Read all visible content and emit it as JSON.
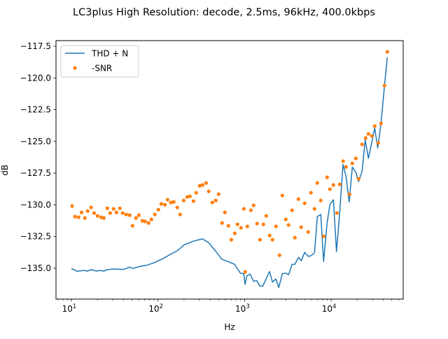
{
  "chart_data": {
    "type": "line",
    "title": "LC3plus High Resolution: decode, 2.5ms, 96kHz, 400.0kbps",
    "xlabel": "Hz",
    "ylabel": "dB",
    "xscale": "log",
    "xlim": [
      6.64,
      67900
    ],
    "ylim": [
      -137.43,
      -117.06
    ],
    "xticks": [
      {
        "value": 10,
        "base": "10",
        "exp": "1"
      },
      {
        "value": 100,
        "base": "10",
        "exp": "2"
      },
      {
        "value": 1000,
        "base": "10",
        "exp": "3"
      },
      {
        "value": 10000,
        "base": "10",
        "exp": "4"
      }
    ],
    "yticks": [
      {
        "value": -117.5,
        "label": "−117.5"
      },
      {
        "value": -120,
        "label": "−120.0"
      },
      {
        "value": -122.5,
        "label": "−122.5"
      },
      {
        "value": -125,
        "label": "−125.0"
      },
      {
        "value": -127.5,
        "label": "−127.5"
      },
      {
        "value": -130,
        "label": "−130.0"
      },
      {
        "value": -132.5,
        "label": "−132.5"
      },
      {
        "value": -135,
        "label": "−135.0"
      }
    ],
    "grid": false,
    "legend_position": "top-left",
    "series": [
      {
        "name": "THD + N",
        "style": "line",
        "color": "#1f77b4",
        "x": [
          10,
          11.6,
          14,
          15.3,
          16.8,
          19.6,
          21.6,
          23.7,
          26,
          30.4,
          40.2,
          46.9,
          51.4,
          61.9,
          74.6,
          89.9,
          108,
          131,
          167,
          201,
          258,
          327,
          386,
          481,
          544,
          656,
          766,
          893,
          980,
          1012,
          1064,
          1159,
          1271,
          1380,
          1503,
          1619,
          1940,
          2102,
          2296,
          2485,
          2728,
          2992,
          3223,
          3540,
          3811,
          4188,
          4508,
          4945,
          5428,
          5846,
          6421,
          6914,
          7590,
          8180,
          8980,
          9670,
          10610,
          11510,
          12550,
          13710,
          14840,
          16180,
          17540,
          19270,
          20750,
          22770,
          24720,
          26920,
          31840,
          34510,
          37640,
          41300,
          44500
        ],
        "y": [
          -135.02,
          -135.24,
          -135.17,
          -135.22,
          -135.11,
          -135.22,
          -135.17,
          -135.22,
          -135.11,
          -135.06,
          -135.09,
          -134.91,
          -135.02,
          -134.85,
          -134.76,
          -134.57,
          -134.32,
          -134.01,
          -133.62,
          -133.16,
          -132.86,
          -132.68,
          -132.99,
          -133.8,
          -134.28,
          -134.5,
          -134.69,
          -135.39,
          -135.43,
          -136.27,
          -135.61,
          -135.46,
          -136.03,
          -135.98,
          -136.4,
          -136.42,
          -135.26,
          -136.09,
          -135.85,
          -136.51,
          -135.43,
          -135.39,
          -135.51,
          -134.69,
          -134.69,
          -134.14,
          -134.41,
          -133.75,
          -134.06,
          -134.02,
          -133.78,
          -130.93,
          -130.76,
          -134.46,
          -131.43,
          -129.99,
          -129.6,
          -133.69,
          -130.6,
          -126.82,
          -127.75,
          -129.77,
          -127.03,
          -127.43,
          -128.17,
          -127.36,
          -124.87,
          -126.34,
          -123.95,
          -125.51,
          -123.58,
          -120.6,
          -118.39
        ]
      },
      {
        "name": "-SNR",
        "style": "points",
        "color": "#ff7f0e",
        "x": [
          10.2,
          11,
          12.1,
          13.1,
          14.3,
          15.4,
          16.9,
          18.3,
          20,
          22,
          23.7,
          26,
          28,
          30.7,
          33.1,
          36.3,
          39.1,
          42.9,
          47.1,
          50.8,
          55.7,
          60,
          65.9,
          71,
          77.9,
          83.9,
          92.1,
          101,
          109,
          120,
          129,
          141,
          152,
          167,
          180,
          198,
          217,
          234,
          257,
          276,
          303,
          327,
          359,
          386,
          424,
          465,
          501,
          550,
          593,
          650,
          703,
          770,
          829,
          909,
          980,
          1017,
          1076,
          1181,
          1271,
          1396,
          1503,
          1649,
          1778,
          1950,
          2102,
          2307,
          2531,
          2728,
          2992,
          3223,
          3540,
          3811,
          4188,
          4508,
          4945,
          5428,
          5846,
          6421,
          6914,
          7590,
          8180,
          8980,
          9670,
          10610,
          11650,
          12550,
          13770,
          14840,
          16290,
          17540,
          19270,
          20750,
          22770,
          25000,
          26920,
          29560,
          31840,
          34920,
          37640,
          41300,
          44500
        ],
        "y": [
          -130.1,
          -130.93,
          -130.98,
          -130.6,
          -131.04,
          -130.49,
          -130.21,
          -130.65,
          -130.87,
          -130.98,
          -131.04,
          -130.27,
          -130.65,
          -130.32,
          -130.6,
          -130.27,
          -130.65,
          -130.76,
          -130.82,
          -131.65,
          -131.04,
          -130.82,
          -131.26,
          -131.31,
          -131.43,
          -131.15,
          -130.76,
          -130.38,
          -129.93,
          -129.99,
          -129.6,
          -129.82,
          -129.77,
          -130.21,
          -130.76,
          -129.66,
          -129.38,
          -129.33,
          -129.71,
          -129.05,
          -128.5,
          -128.44,
          -128.28,
          -128.94,
          -129.82,
          -129.66,
          -129.16,
          -131.43,
          -130.6,
          -131.65,
          -132.75,
          -132.25,
          -131.54,
          -131.81,
          -130.32,
          -135.29,
          -131.7,
          -130.43,
          -130.04,
          -131.48,
          -132.75,
          -131.54,
          -130.87,
          -132.42,
          -132.75,
          -131.7,
          -133.97,
          -129.27,
          -131.15,
          -131.59,
          -130.43,
          -132.59,
          -129.55,
          -131.76,
          -129.88,
          -132.14,
          -129.05,
          -130.32,
          -128.28,
          -129.66,
          -132.48,
          -127.83,
          -128.77,
          -128.44,
          -130.65,
          -128.39,
          -126.56,
          -127.01,
          -129.16,
          -126.73,
          -126.34,
          -127.95,
          -125.24,
          -124.74,
          -124.41,
          -124.57,
          -123.8,
          -125.13,
          -123.58,
          -120.6,
          -117.94
        ]
      }
    ]
  }
}
